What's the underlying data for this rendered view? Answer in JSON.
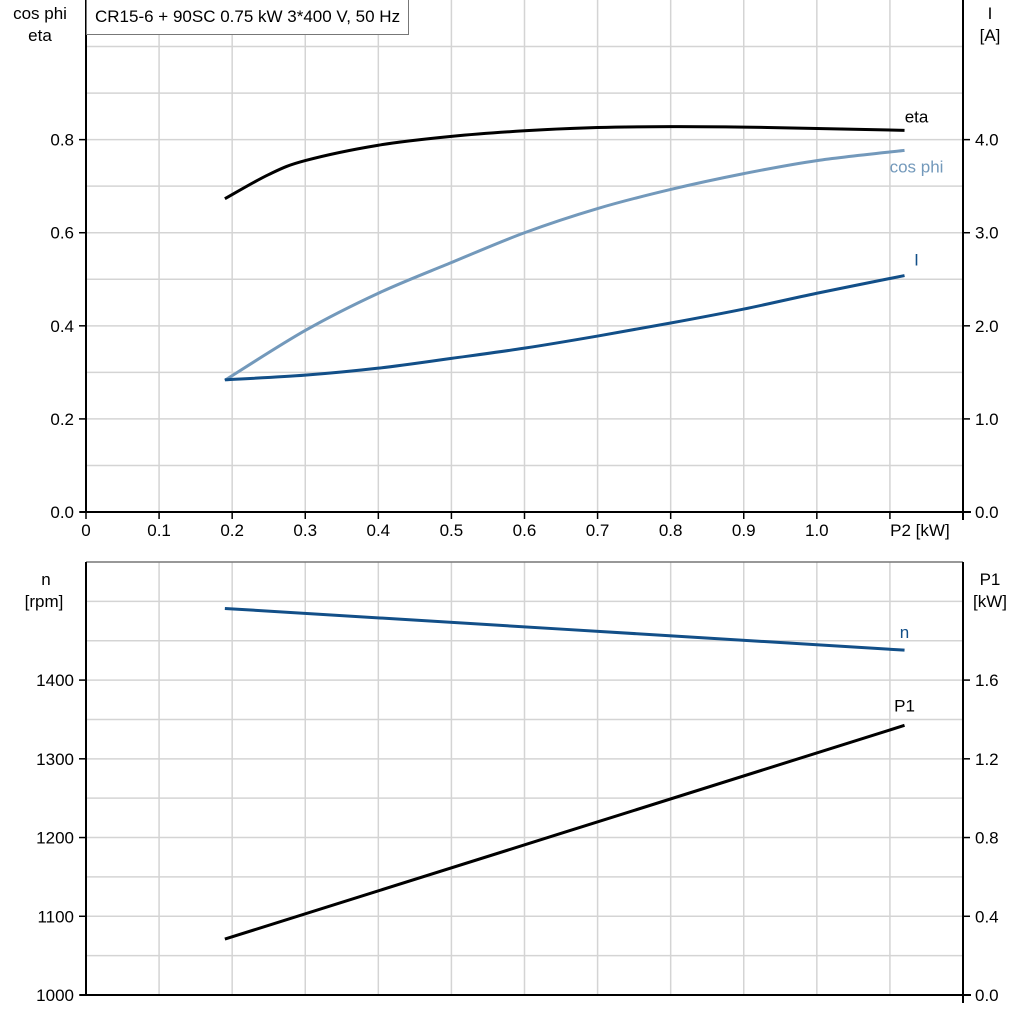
{
  "title": "CR15-6 + 90SC   0.75 kW   3*400 V, 50 Hz",
  "chart_data": [
    {
      "type": "line",
      "x_label": "P2 [kW]",
      "x_ticks": [
        "0",
        "0.1",
        "0.2",
        "0.3",
        "0.4",
        "0.5",
        "0.6",
        "0.7",
        "0.8",
        "0.9",
        "1.0"
      ],
      "xlim": [
        0,
        1.2
      ],
      "y_label_left": [
        "cos phi",
        "eta"
      ],
      "y_ticks_left": [
        "0.0",
        "0.2",
        "0.4",
        "0.6",
        "0.8"
      ],
      "ylim_left": [
        0,
        1.1
      ],
      "y_label_right": [
        "I",
        "[A]"
      ],
      "y_ticks_right": [
        "0.0",
        "1.0",
        "2.0",
        "3.0",
        "4.0"
      ],
      "ylim_right": [
        0,
        5.5
      ],
      "grid": true,
      "series": [
        {
          "name": "eta",
          "axis": "left",
          "color": "#000000",
          "x": [
            0.19,
            0.25,
            0.3,
            0.4,
            0.5,
            0.6,
            0.7,
            0.8,
            0.9,
            1.0,
            1.12
          ],
          "y": [
            0.673,
            0.725,
            0.755,
            0.788,
            0.807,
            0.819,
            0.826,
            0.828,
            0.827,
            0.824,
            0.82
          ]
        },
        {
          "name": "cos phi",
          "axis": "left",
          "color": "#7399bb",
          "x": [
            0.19,
            0.3,
            0.4,
            0.5,
            0.6,
            0.7,
            0.8,
            0.9,
            1.0,
            1.12
          ],
          "y": [
            0.283,
            0.39,
            0.47,
            0.536,
            0.6,
            0.652,
            0.693,
            0.727,
            0.755,
            0.777
          ]
        },
        {
          "name": "I",
          "axis": "right",
          "color": "#124f88",
          "x": [
            0.19,
            0.3,
            0.4,
            0.5,
            0.6,
            0.7,
            0.8,
            0.9,
            1.0,
            1.12
          ],
          "y": [
            1.42,
            1.47,
            1.545,
            1.65,
            1.76,
            1.89,
            2.03,
            2.18,
            2.35,
            2.54
          ]
        }
      ]
    },
    {
      "type": "line",
      "xlim": [
        0,
        1.2
      ],
      "y_label_left": [
        "n",
        "[rpm]"
      ],
      "y_ticks_left": [
        "1000",
        "1100",
        "1200",
        "1300",
        "1400"
      ],
      "ylim_left": [
        1000,
        1550
      ],
      "y_label_right": [
        "P1",
        "[kW]"
      ],
      "y_ticks_right": [
        "0.0",
        "0.4",
        "0.8",
        "1.2",
        "1.6"
      ],
      "ylim_right": [
        0,
        2.2
      ],
      "grid": true,
      "series": [
        {
          "name": "n",
          "axis": "left",
          "color": "#124f88",
          "x": [
            0.19,
            1.12
          ],
          "y": [
            1491,
            1438
          ]
        },
        {
          "name": "P1",
          "axis": "right",
          "color": "#000000",
          "x": [
            0.19,
            1.12
          ],
          "y": [
            0.284,
            1.37
          ]
        }
      ]
    }
  ]
}
